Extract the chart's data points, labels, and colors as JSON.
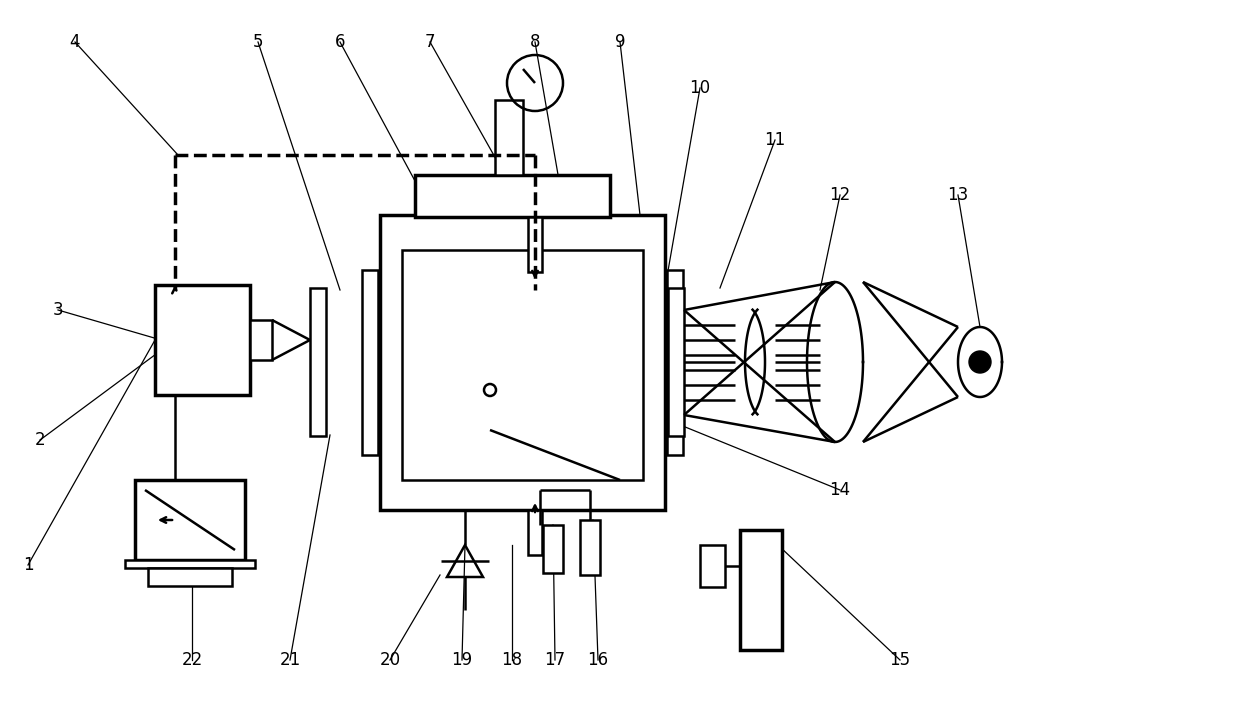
{
  "bg_color": "#ffffff",
  "line_color": "#000000",
  "lw": 1.8,
  "lw_thick": 2.5,
  "fs": 12,
  "figw": 12.4,
  "figh": 7.24,
  "dpi": 100
}
